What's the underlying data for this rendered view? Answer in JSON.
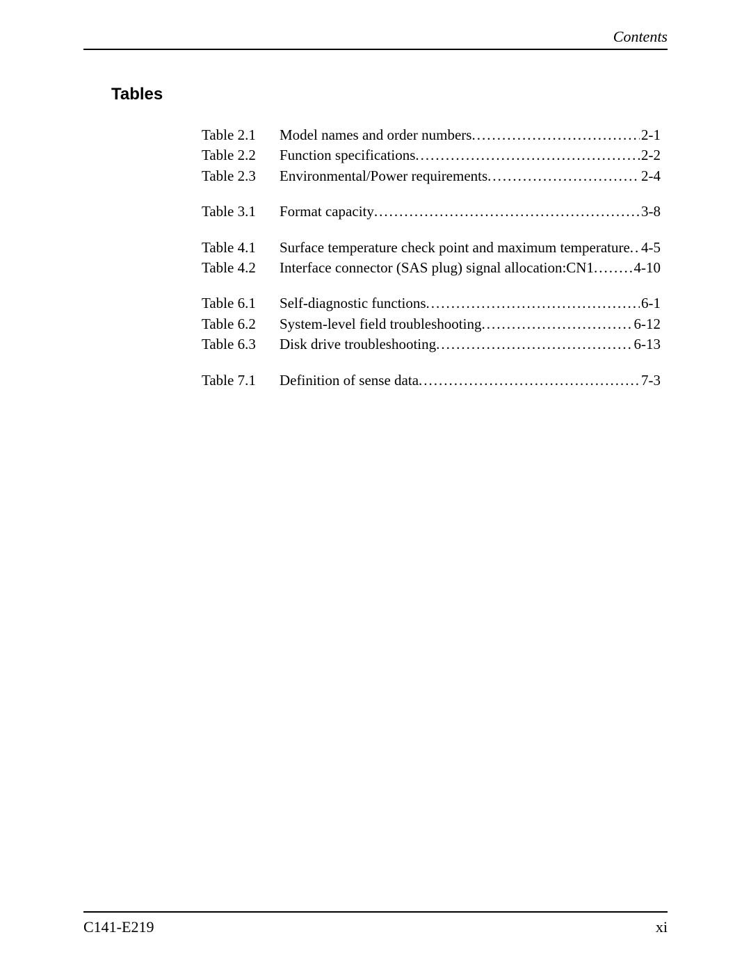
{
  "header": {
    "title": "Contents"
  },
  "section": {
    "title": "Tables"
  },
  "toc": {
    "groups": [
      [
        {
          "label": "Table 2.1",
          "title": "Model names and order numbers",
          "page": "2-1"
        },
        {
          "label": "Table 2.2",
          "title": "Function specifications",
          "page": "2-2"
        },
        {
          "label": "Table 2.3",
          "title": "Environmental/Power requirements",
          "page": "2-4"
        }
      ],
      [
        {
          "label": "Table 3.1",
          "title": "Format capacity",
          "page": "3-8"
        }
      ],
      [
        {
          "label": "Table 4.1",
          "title": "Surface temperature check point and maximum temperature",
          "page": "4-5"
        },
        {
          "label": "Table 4.2",
          "title": "Interface connector (SAS plug) signal allocation:CN1",
          "page": "4-10"
        }
      ],
      [
        {
          "label": "Table 6.1",
          "title": "Self-diagnostic functions",
          "page": "6-1"
        },
        {
          "label": "Table 6.2",
          "title": "System-level field troubleshooting",
          "page": "6-12"
        },
        {
          "label": "Table 6.3",
          "title": "Disk drive troubleshooting",
          "page": "6-13"
        }
      ],
      [
        {
          "label": "Table 7.1",
          "title": "Definition of sense data",
          "page": "7-3"
        }
      ]
    ]
  },
  "footer": {
    "doc_id": "C141-E219",
    "page_number": "xi"
  },
  "style": {
    "background_color": "#ffffff",
    "text_color": "#000000",
    "rule_color": "#000000",
    "body_fontsize": 21,
    "header_fontsize": 22,
    "section_title_fontsize": 24,
    "footer_fontsize": 22
  }
}
